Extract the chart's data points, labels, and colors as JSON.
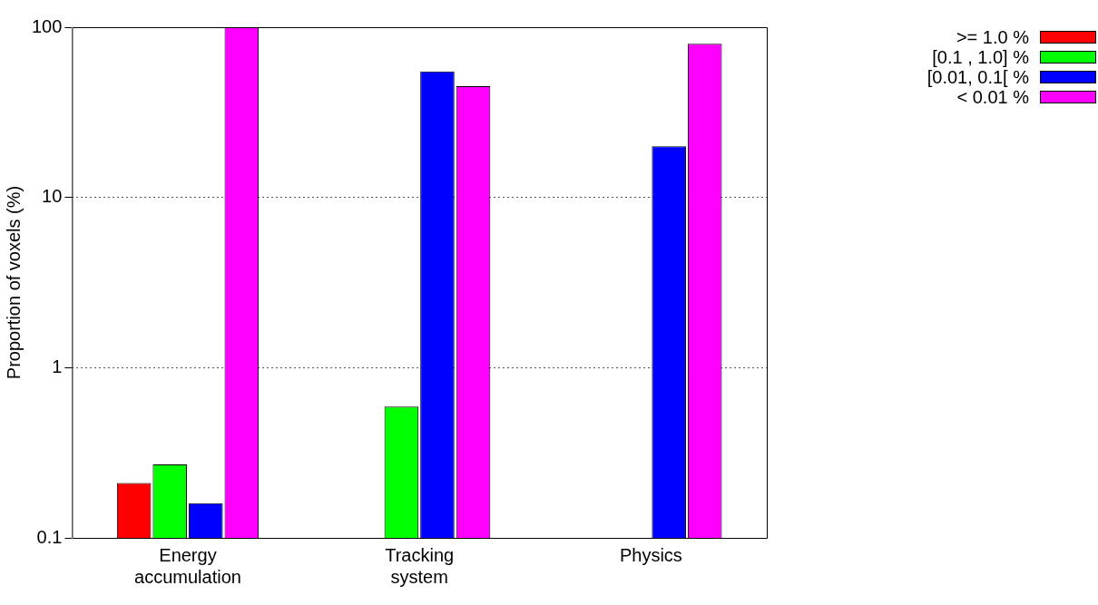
{
  "chart_data": {
    "type": "bar",
    "ylabel": "Proportion of voxels (%)",
    "categories": [
      [
        "Energy",
        "accumulation"
      ],
      [
        "Tracking",
        "system"
      ],
      [
        "Physics"
      ]
    ],
    "series": [
      {
        "name": ">= 1.0  %",
        "color": "#ff0000",
        "values": [
          0.21,
          null,
          null
        ]
      },
      {
        "name": "[0.1  , 1.0] %",
        "color": "#00ff00",
        "values": [
          0.27,
          0.59,
          null
        ]
      },
      {
        "name": "[0.01, 0.1[ %",
        "color": "#0000ff",
        "values": [
          0.16,
          55,
          20
        ]
      },
      {
        "name": "< 0.01 %",
        "color": "#ff00ff",
        "values": [
          100,
          45,
          80
        ]
      }
    ],
    "log": true,
    "ylim": [
      0.1,
      100
    ],
    "yticks": [
      0.1,
      1,
      10,
      100
    ],
    "grid": "y",
    "legend": "top right"
  }
}
